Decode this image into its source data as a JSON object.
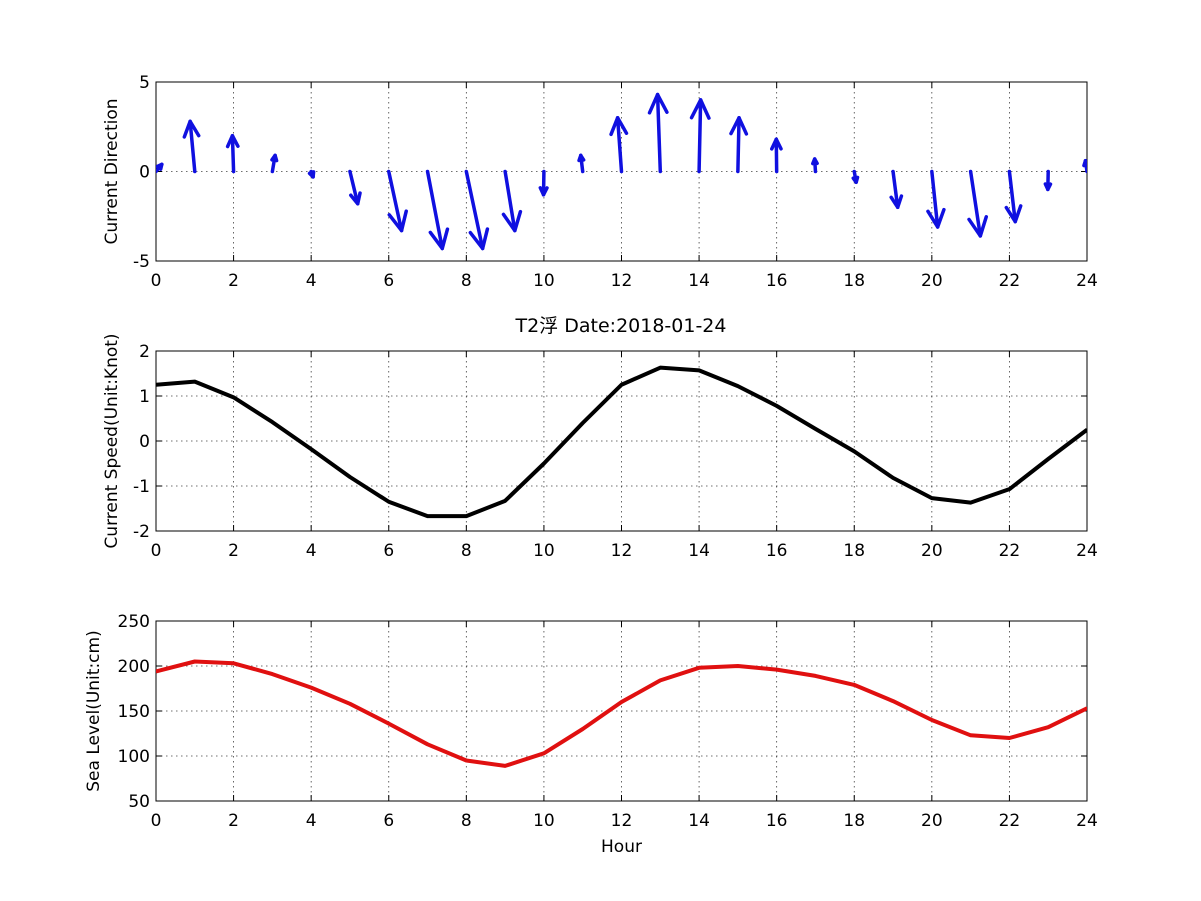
{
  "figure_title": "T2浮   Date:2018-01-24",
  "title_color": "#e01010",
  "chart_data": [
    {
      "type": "quiver",
      "ylabel": "Current Direction",
      "xlabel": "",
      "xlim": [
        0,
        24
      ],
      "ylim": [
        -5,
        5
      ],
      "xticks": [
        0,
        2,
        4,
        6,
        8,
        10,
        12,
        14,
        16,
        18,
        20,
        22,
        24
      ],
      "yticks": [
        -5,
        0,
        5
      ],
      "grid": true,
      "color": "#1010e0",
      "x": [
        0,
        1,
        2,
        3,
        4,
        5,
        6,
        7,
        8,
        9,
        10,
        11,
        12,
        13,
        14,
        15,
        16,
        17,
        18,
        19,
        20,
        21,
        22,
        23,
        24
      ],
      "u": [
        0.15,
        -0.12,
        -0.03,
        0.07,
        0.05,
        0.2,
        0.33,
        0.38,
        0.42,
        0.25,
        -0.01,
        -0.05,
        -0.1,
        -0.07,
        0.04,
        0.03,
        -0.01,
        -0.02,
        0.05,
        0.12,
        0.15,
        0.25,
        0.15,
        -0.01,
        -0.04
      ],
      "v": [
        0.4,
        2.8,
        2.0,
        0.9,
        -0.3,
        -1.8,
        -3.3,
        -4.3,
        -4.3,
        -3.3,
        -1.3,
        0.9,
        3.0,
        4.3,
        4.0,
        3.0,
        1.8,
        0.7,
        -0.6,
        -2.0,
        -3.1,
        -3.6,
        -2.8,
        -1.0,
        0.6
      ]
    },
    {
      "type": "line",
      "ylabel": "Current Speed(Unit:Knot)",
      "xlabel": "",
      "xlim": [
        0,
        24
      ],
      "ylim": [
        -2,
        2
      ],
      "xticks": [
        0,
        2,
        4,
        6,
        8,
        10,
        12,
        14,
        16,
        18,
        20,
        22,
        24
      ],
      "yticks": [
        -2,
        -1,
        0,
        1,
        2
      ],
      "grid": true,
      "color": "#000000",
      "x": [
        0,
        1,
        2,
        3,
        4,
        5,
        6,
        7,
        8,
        9,
        10,
        11,
        12,
        13,
        14,
        15,
        16,
        17,
        18,
        19,
        20,
        21,
        22,
        23,
        24
      ],
      "y": [
        1.25,
        1.32,
        0.97,
        0.42,
        -0.18,
        -0.8,
        -1.35,
        -1.67,
        -1.67,
        -1.33,
        -0.5,
        0.4,
        1.25,
        1.63,
        1.57,
        1.22,
        0.78,
        0.27,
        -0.23,
        -0.82,
        -1.27,
        -1.37,
        -1.07,
        -0.4,
        0.25
      ]
    },
    {
      "type": "line",
      "ylabel": "Sea Level(Unit:cm)",
      "xlabel": "Hour",
      "xlim": [
        0,
        24
      ],
      "ylim": [
        50,
        250
      ],
      "xticks": [
        0,
        2,
        4,
        6,
        8,
        10,
        12,
        14,
        16,
        18,
        20,
        22,
        24
      ],
      "yticks": [
        50,
        100,
        150,
        200,
        250
      ],
      "grid": true,
      "color": "#e01010",
      "x": [
        0,
        1,
        2,
        3,
        4,
        5,
        6,
        7,
        8,
        9,
        10,
        11,
        12,
        13,
        14,
        15,
        16,
        17,
        18,
        19,
        20,
        21,
        22,
        23,
        24
      ],
      "y": [
        194,
        205,
        203,
        191,
        176,
        158,
        136,
        113,
        95,
        89,
        103,
        130,
        160,
        184,
        198,
        200,
        196,
        189,
        179,
        161,
        140,
        123,
        120,
        132,
        153
      ]
    }
  ]
}
